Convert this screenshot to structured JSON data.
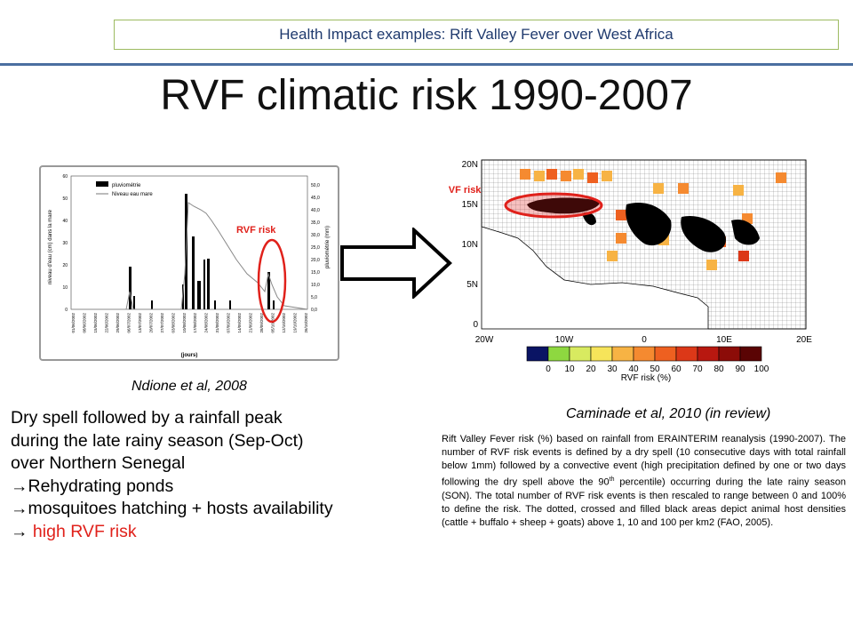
{
  "header": {
    "text": "Health Impact examples: Rift Valley Fever over West Africa"
  },
  "title": "RVF climatic risk 1990-2007",
  "left_figure": {
    "legend": [
      "pluviométrie",
      "Niveau eau mare"
    ],
    "y_left_label": "niveau d'eau (cm) dans la mare",
    "y_right_label": "pluviométrie (mm)",
    "x_label": "(jours)",
    "y_left_ticks": [
      "0",
      "10",
      "20",
      "30",
      "40",
      "50",
      "60"
    ],
    "y_right_ticks": [
      "0,0",
      "5,0",
      "10,0",
      "15,0",
      "20,0",
      "25,0",
      "30,0",
      "35,0",
      "40,0",
      "45,0",
      "50,0"
    ],
    "x_ticks": [
      "01/06/2002",
      "08/06/2002",
      "15/06/2002",
      "22/06/2002",
      "29/06/2002",
      "06/07/2002",
      "13/07/2002",
      "20/07/2002",
      "27/07/2002",
      "03/08/2002",
      "10/08/2002",
      "17/08/2002",
      "24/08/2002",
      "31/08/2002",
      "07/09/2002",
      "14/09/2002",
      "21/09/2002",
      "28/09/2002",
      "05/10/2002",
      "12/10/2002",
      "19/10/2002",
      "26/10/2002"
    ],
    "rvf_label": "RVF risk",
    "caption": "Ndione et al, 2008"
  },
  "map": {
    "rvf_label": "RVF risk",
    "lat_labels": [
      "20N",
      "15N",
      "10N",
      "5N",
      "0"
    ],
    "lon_labels": [
      "20W",
      "10W",
      "0",
      "10E",
      "20E"
    ],
    "colorbar_ticks": [
      "0",
      "10",
      "20",
      "30",
      "40",
      "50",
      "60",
      "70",
      "80",
      "90",
      "100"
    ],
    "colorbar_colors": [
      "#0a1464",
      "#8ed840",
      "#d8ea60",
      "#f6e45a",
      "#f7b344",
      "#f58a30",
      "#ee6020",
      "#dc3818",
      "#b81810",
      "#8c0c08",
      "#5a0404"
    ],
    "colorbar_label": "RVF risk (%)",
    "caption": "Caminade et al, 2010 (in review)"
  },
  "bullets": {
    "line1": "Dry spell followed by a rainfall peak",
    "line2": "during the late rainy season (Sep-Oct)",
    "line3": "over Northern Senegal",
    "arrow1": "Rehydrating ponds",
    "arrow2": "mosquitoes hatching + hosts availability",
    "arrow3": " high RVF risk",
    "arrow_glyph": "→"
  },
  "paragraph": {
    "text_a": "Rift Valley Fever risk (%) based on rainfall from ERAINTERIM reanalysis (1990-2007). The number of RVF risk events is defined by a dry spell (10 consecutive days with total rainfall below 1mm) followed by a convective event (high precipitation defined by one or two days following the dry spell above the 90",
    "sup": "th",
    "text_b": " percentile) occurring during the late rainy season (SON). The total number of RVF risk events is then rescaled to range between 0 and 100% to define the risk. The dotted, crossed and filled black areas depict animal host densities (cattle + buffalo + sheep + goats) above 1, 10 and 100 per km2 (FAO, 2005)."
  },
  "colors": {
    "accent_red": "#e0211b",
    "header_border": "#9dbb61",
    "rule": "#4a6fa0"
  }
}
